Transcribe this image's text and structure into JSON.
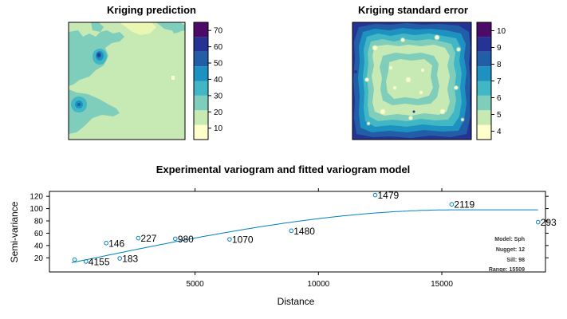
{
  "chart_data": [
    {
      "type": "heatmap",
      "title": "Kriging prediction",
      "colorbar": {
        "ticks": [
          10,
          20,
          30,
          40,
          50,
          60,
          70
        ],
        "range": [
          3,
          75
        ],
        "colors": [
          "#ffffcc",
          "#c7e9b4",
          "#7fcdbb",
          "#41b6c4",
          "#1d91c0",
          "#225ea8",
          "#253494",
          "#4b0b67"
        ]
      }
    },
    {
      "type": "heatmap",
      "title": "Kriging standard error",
      "colorbar": {
        "ticks": [
          4,
          5,
          6,
          7,
          8,
          9,
          10
        ],
        "range": [
          3.5,
          10.5
        ],
        "colors": [
          "#ffffcc",
          "#c7e9b4",
          "#7fcdbb",
          "#41b6c4",
          "#1d91c0",
          "#225ea8",
          "#253494",
          "#4b0b67"
        ]
      }
    },
    {
      "type": "scatter",
      "title": "Experimental variogram and fitted variogram model",
      "xlabel": "Distance",
      "ylabel": "Semi-variance",
      "xlim": [
        -900,
        19200
      ],
      "ylim": [
        -3,
        128
      ],
      "xticks": [
        5000,
        10000,
        15000
      ],
      "yticks": [
        20,
        40,
        60,
        80,
        100,
        120
      ],
      "points": [
        {
          "x": 120,
          "y": 17,
          "np": ""
        },
        {
          "x": 580,
          "y": 14,
          "np": "4155"
        },
        {
          "x": 1400,
          "y": 44,
          "np": "146"
        },
        {
          "x": 1950,
          "y": 19,
          "np": "183"
        },
        {
          "x": 2700,
          "y": 52,
          "np": "227"
        },
        {
          "x": 4200,
          "y": 51,
          "np": "980"
        },
        {
          "x": 6400,
          "y": 50,
          "np": "1070"
        },
        {
          "x": 8900,
          "y": 64,
          "np": "1480"
        },
        {
          "x": 12300,
          "y": 122,
          "np": "1479"
        },
        {
          "x": 15400,
          "y": 107,
          "np": "2119"
        },
        {
          "x": 18900,
          "y": 78,
          "np": "293"
        }
      ],
      "model": {
        "line1": "Model: Sph",
        "line2": "Nugget: 12",
        "line3": "Sill: 98",
        "line4": "Range: 15509",
        "nugget": 12,
        "sill": 98,
        "range": 15509,
        "color": "#0080c0"
      }
    }
  ]
}
